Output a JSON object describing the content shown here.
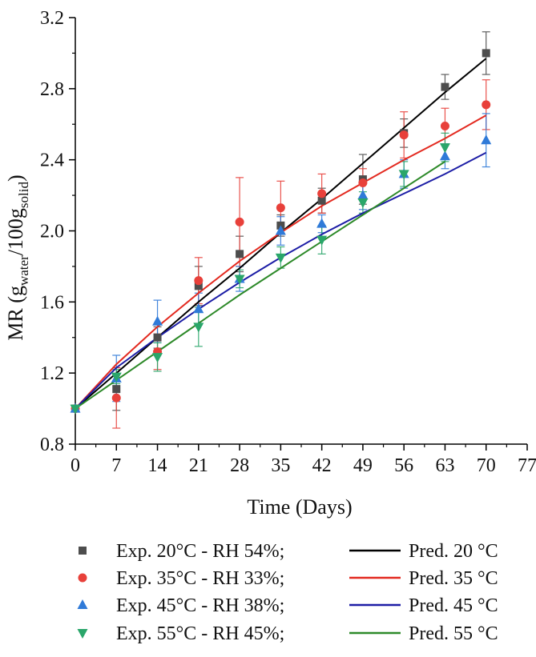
{
  "chart_data": {
    "type": "scatter",
    "title": "",
    "xlabel": "Time (Days)",
    "ylabel": {
      "prefix": "MR (g",
      "sub1": "water",
      "mid": "/100g",
      "sub2": "solid",
      "suffix": ")"
    },
    "xlim": [
      0,
      77
    ],
    "ylim": [
      0.8,
      3.2
    ],
    "x_ticks": [
      0,
      7,
      14,
      21,
      28,
      35,
      42,
      49,
      56,
      63,
      70,
      77
    ],
    "y_ticks": [
      0.8,
      1.2,
      1.6,
      2.0,
      2.4,
      2.8,
      3.2
    ],
    "y_tick_labels": [
      "0.8",
      "1.2",
      "1.6",
      "2.0",
      "2.4",
      "2.8",
      "3.2"
    ],
    "grid": false,
    "legend_position": "bottom",
    "series": [
      {
        "name": "Exp. 20°C - RH 54%;",
        "kind": "experimental",
        "marker": "square",
        "color": "#4d4d4d",
        "x": [
          0,
          7,
          14,
          21,
          28,
          35,
          42,
          49,
          56,
          63,
          70
        ],
        "y": [
          1.0,
          1.11,
          1.4,
          1.69,
          1.87,
          2.03,
          2.17,
          2.29,
          2.55,
          2.81,
          3.0
        ],
        "err": [
          0,
          0.12,
          0.06,
          0.11,
          0.1,
          0.06,
          0.07,
          0.14,
          0.08,
          0.07,
          0.12
        ]
      },
      {
        "name": "Exp. 35°C - RH 33%;",
        "kind": "experimental",
        "marker": "circle",
        "color": "#e8403a",
        "x": [
          0,
          7,
          14,
          21,
          28,
          35,
          42,
          49,
          56,
          63,
          70
        ],
        "y": [
          1.0,
          1.06,
          1.32,
          1.72,
          2.05,
          2.13,
          2.21,
          2.27,
          2.54,
          2.59,
          2.71
        ],
        "err": [
          0,
          0.17,
          0.1,
          0.13,
          0.25,
          0.15,
          0.11,
          0.08,
          0.13,
          0.1,
          0.14
        ]
      },
      {
        "name": "Exp. 45°C - RH 38%;",
        "kind": "experimental",
        "marker": "triangle-up",
        "color": "#2f7ad8",
        "x": [
          0,
          7,
          14,
          21,
          28,
          35,
          42,
          49,
          56,
          63,
          70
        ],
        "y": [
          1.0,
          1.17,
          1.49,
          1.56,
          1.73,
          2.0,
          2.04,
          2.2,
          2.32,
          2.42,
          2.51
        ],
        "err": [
          0,
          0.13,
          0.12,
          0.09,
          0.07,
          0.08,
          0.05,
          0.08,
          0.08,
          0.07,
          0.15
        ]
      },
      {
        "name": "Exp. 55°C - RH 45%;",
        "kind": "experimental",
        "marker": "triangle-down",
        "color": "#2aa66a",
        "x": [
          0,
          7,
          14,
          21,
          28,
          35,
          42,
          49,
          56,
          63
        ],
        "y": [
          1.0,
          1.18,
          1.29,
          1.46,
          1.73,
          1.85,
          1.95,
          2.16,
          2.32,
          2.47
        ],
        "err": [
          0,
          0.04,
          0.08,
          0.11,
          0.05,
          0.06,
          0.08,
          0.06,
          0.07,
          0.08
        ]
      },
      {
        "name": "Pred. 20 °C",
        "kind": "predicted",
        "color": "#000000",
        "x": [
          0,
          7,
          14,
          21,
          28,
          35,
          42,
          49,
          56,
          63,
          70
        ],
        "y": [
          1.0,
          1.2,
          1.4,
          1.6,
          1.79,
          1.99,
          2.18,
          2.38,
          2.58,
          2.78,
          2.97
        ]
      },
      {
        "name": "Pred. 35 °C",
        "kind": "predicted",
        "color": "#e32a20",
        "x": [
          0,
          7,
          14,
          21,
          28,
          35,
          42,
          49,
          56,
          63,
          70
        ],
        "y": [
          1.0,
          1.25,
          1.46,
          1.65,
          1.83,
          1.99,
          2.14,
          2.27,
          2.4,
          2.52,
          2.65
        ]
      },
      {
        "name": "Pred. 45 °C",
        "kind": "predicted",
        "color": "#1d1ea6",
        "x": [
          0,
          7,
          14,
          21,
          28,
          35,
          42,
          49,
          56,
          63,
          70
        ],
        "y": [
          1.0,
          1.23,
          1.4,
          1.56,
          1.71,
          1.85,
          1.98,
          2.1,
          2.21,
          2.32,
          2.44
        ]
      },
      {
        "name": "Pred. 55 °C",
        "kind": "predicted",
        "color": "#2e8a2a",
        "x": [
          0,
          7,
          14,
          21,
          28,
          35,
          42,
          49,
          56,
          63
        ],
        "y": [
          1.0,
          1.16,
          1.32,
          1.48,
          1.64,
          1.79,
          1.94,
          2.09,
          2.24,
          2.39
        ]
      }
    ]
  }
}
